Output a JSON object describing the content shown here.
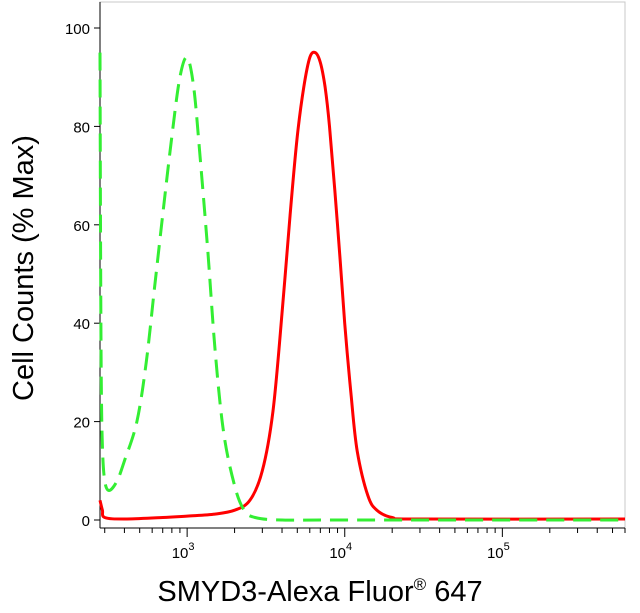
{
  "chart_data": {
    "type": "line",
    "xlabel_main": "SMYD3-Alexa Fluor",
    "xlabel_reg": "®",
    "xlabel_tail": " 647",
    "ylabel": "Cell Counts (% Max)",
    "x_scale": "log",
    "xlim": [
      280,
      600000
    ],
    "ylim": [
      0,
      100
    ],
    "yticks": [
      0,
      20,
      40,
      60,
      80,
      100
    ],
    "xtick_exponents": [
      "3",
      "4",
      "5"
    ],
    "xticks": [
      1000,
      10000,
      100000
    ],
    "grid": false,
    "legend": "none",
    "series": [
      {
        "color": "#ff0000",
        "style": "solid",
        "points": [
          [
            280,
            4
          ],
          [
            290,
            2
          ],
          [
            300,
            0.5
          ],
          [
            400,
            0.2
          ],
          [
            700,
            0.5
          ],
          [
            1000,
            0.8
          ],
          [
            1500,
            1.2
          ],
          [
            2000,
            2
          ],
          [
            2500,
            4
          ],
          [
            3000,
            10
          ],
          [
            3500,
            22
          ],
          [
            4000,
            42
          ],
          [
            4500,
            62
          ],
          [
            5000,
            78
          ],
          [
            5500,
            88
          ],
          [
            6000,
            94
          ],
          [
            6500,
            95
          ],
          [
            7000,
            93
          ],
          [
            7500,
            88
          ],
          [
            8000,
            80
          ],
          [
            9000,
            60
          ],
          [
            10000,
            40
          ],
          [
            11000,
            25
          ],
          [
            12000,
            14
          ],
          [
            14000,
            5
          ],
          [
            16000,
            2
          ],
          [
            20000,
            0.5
          ],
          [
            30000,
            0.2
          ],
          [
            600000,
            0.2
          ]
        ]
      },
      {
        "color": "#33ee33",
        "style": "dashed",
        "points": [
          [
            280,
            95
          ],
          [
            282,
            60
          ],
          [
            285,
            30
          ],
          [
            290,
            15
          ],
          [
            300,
            8
          ],
          [
            320,
            6
          ],
          [
            360,
            8
          ],
          [
            400,
            12
          ],
          [
            480,
            20
          ],
          [
            550,
            32
          ],
          [
            620,
            47
          ],
          [
            700,
            62
          ],
          [
            800,
            78
          ],
          [
            900,
            90
          ],
          [
            1000,
            94
          ],
          [
            1100,
            88
          ],
          [
            1200,
            75
          ],
          [
            1350,
            55
          ],
          [
            1500,
            35
          ],
          [
            1700,
            18
          ],
          [
            2000,
            7
          ],
          [
            2300,
            2
          ],
          [
            2700,
            0.5
          ],
          [
            4000,
            0
          ],
          [
            10000,
            0
          ],
          [
            600000,
            0
          ]
        ]
      }
    ]
  }
}
